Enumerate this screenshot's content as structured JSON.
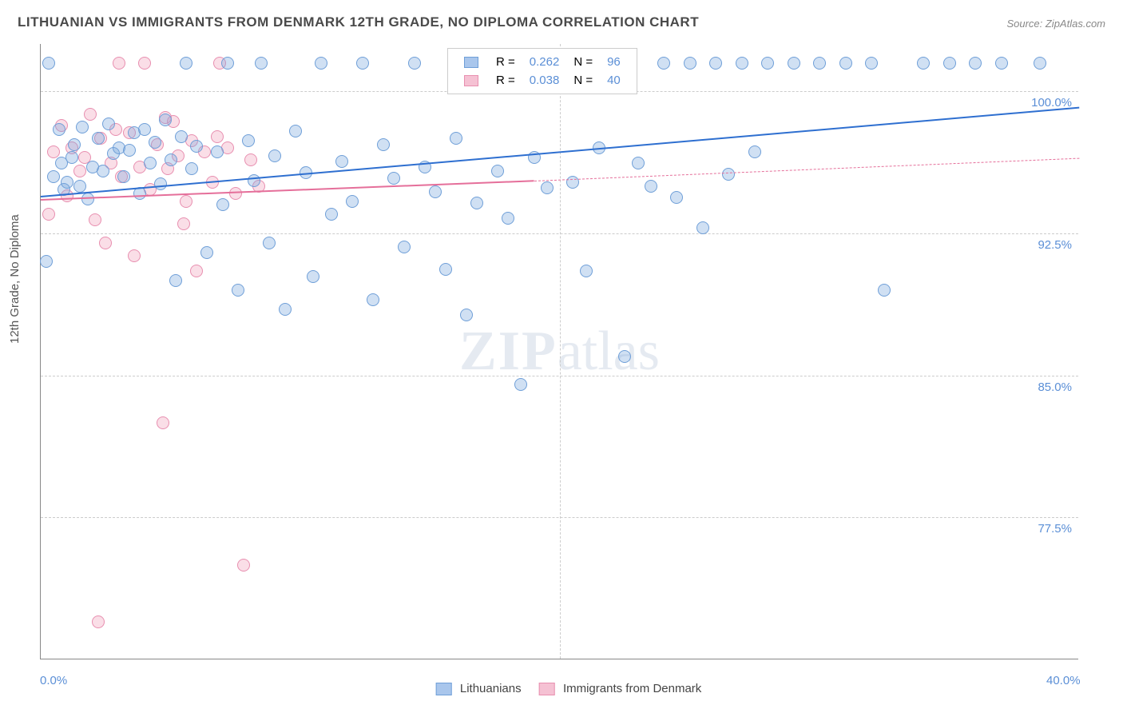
{
  "title": "LITHUANIAN VS IMMIGRANTS FROM DENMARK 12TH GRADE, NO DIPLOMA CORRELATION CHART",
  "source": "Source: ZipAtlas.com",
  "y_axis_label": "12th Grade, No Diploma",
  "watermark_bold": "ZIP",
  "watermark_rest": "atlas",
  "chart": {
    "type": "scatter",
    "background_color": "#ffffff",
    "grid_color": "#cccccc",
    "axis_line_color": "#888888",
    "xlim": [
      0,
      40
    ],
    "ylim": [
      70,
      102.5
    ],
    "x_ticks": [
      {
        "value": 0,
        "label": "0.0%"
      },
      {
        "value": 40,
        "label": "40.0%"
      }
    ],
    "x_gridlines": [
      20
    ],
    "y_ticks": [
      {
        "value": 77.5,
        "label": "77.5%"
      },
      {
        "value": 85.0,
        "label": "85.0%"
      },
      {
        "value": 92.5,
        "label": "92.5%"
      },
      {
        "value": 100.0,
        "label": "100.0%"
      }
    ],
    "y_tick_label_color": "#5b8fd6",
    "label_fontsize": 15,
    "title_fontsize": 17,
    "title_color": "#4a4a4a"
  },
  "series": [
    {
      "name": "Lithuanians",
      "marker_fill": "rgba(120,165,220,0.35)",
      "marker_stroke": "#6f9fd8",
      "marker_radius": 8,
      "swatch_fill": "#a9c6ec",
      "swatch_border": "#6f9fd8",
      "R": "0.262",
      "N": "96",
      "trend": {
        "x1": 0,
        "y1": 94.5,
        "x2": 40,
        "y2": 99.2,
        "color": "#2e6fd0",
        "width": 2.5,
        "dash": false
      },
      "points": [
        [
          0.2,
          91
        ],
        [
          0.3,
          101.5
        ],
        [
          0.5,
          95.5
        ],
        [
          0.7,
          98
        ],
        [
          0.8,
          96.2
        ],
        [
          0.9,
          94.8
        ],
        [
          1.0,
          95.2
        ],
        [
          1.2,
          96.5
        ],
        [
          1.3,
          97.2
        ],
        [
          1.5,
          95.0
        ],
        [
          1.6,
          98.1
        ],
        [
          1.8,
          94.3
        ],
        [
          2.0,
          96.0
        ],
        [
          2.2,
          97.5
        ],
        [
          2.4,
          95.8
        ],
        [
          2.6,
          98.3
        ],
        [
          2.8,
          96.7
        ],
        [
          3.0,
          97.0
        ],
        [
          3.2,
          95.5
        ],
        [
          3.4,
          96.9
        ],
        [
          3.6,
          97.8
        ],
        [
          3.8,
          94.6
        ],
        [
          4.0,
          98.0
        ],
        [
          4.2,
          96.2
        ],
        [
          4.4,
          97.3
        ],
        [
          4.6,
          95.1
        ],
        [
          4.8,
          98.5
        ],
        [
          5.0,
          96.4
        ],
        [
          5.2,
          90.0
        ],
        [
          5.4,
          97.6
        ],
        [
          5.6,
          101.5
        ],
        [
          5.8,
          95.9
        ],
        [
          6.0,
          97.1
        ],
        [
          6.4,
          91.5
        ],
        [
          6.8,
          96.8
        ],
        [
          7.0,
          94.0
        ],
        [
          7.2,
          101.5
        ],
        [
          7.6,
          89.5
        ],
        [
          8.0,
          97.4
        ],
        [
          8.2,
          95.3
        ],
        [
          8.5,
          101.5
        ],
        [
          8.8,
          92.0
        ],
        [
          9.0,
          96.6
        ],
        [
          9.4,
          88.5
        ],
        [
          9.8,
          97.9
        ],
        [
          10.2,
          95.7
        ],
        [
          10.5,
          90.2
        ],
        [
          10.8,
          101.5
        ],
        [
          11.2,
          93.5
        ],
        [
          11.6,
          96.3
        ],
        [
          12.0,
          94.2
        ],
        [
          12.4,
          101.5
        ],
        [
          12.8,
          89.0
        ],
        [
          13.2,
          97.2
        ],
        [
          13.6,
          95.4
        ],
        [
          14.0,
          91.8
        ],
        [
          14.4,
          101.5
        ],
        [
          14.8,
          96.0
        ],
        [
          15.2,
          94.7
        ],
        [
          15.6,
          90.6
        ],
        [
          16.0,
          97.5
        ],
        [
          16.4,
          88.2
        ],
        [
          16.8,
          94.1
        ],
        [
          17.2,
          101.5
        ],
        [
          17.6,
          95.8
        ],
        [
          18.0,
          93.3
        ],
        [
          18.5,
          84.5
        ],
        [
          19.0,
          96.5
        ],
        [
          19.5,
          94.9
        ],
        [
          20.0,
          101.5
        ],
        [
          20.5,
          95.2
        ],
        [
          21.0,
          90.5
        ],
        [
          21.5,
          97.0
        ],
        [
          22.0,
          101.5
        ],
        [
          22.5,
          86.0
        ],
        [
          23.0,
          96.2
        ],
        [
          23.5,
          95.0
        ],
        [
          24.0,
          101.5
        ],
        [
          24.5,
          94.4
        ],
        [
          25.0,
          101.5
        ],
        [
          25.5,
          92.8
        ],
        [
          26.0,
          101.5
        ],
        [
          26.5,
          95.6
        ],
        [
          27.0,
          101.5
        ],
        [
          27.5,
          96.8
        ],
        [
          28.0,
          101.5
        ],
        [
          29.0,
          101.5
        ],
        [
          30.0,
          101.5
        ],
        [
          31.0,
          101.5
        ],
        [
          32.0,
          101.5
        ],
        [
          32.5,
          89.5
        ],
        [
          34.0,
          101.5
        ],
        [
          35.0,
          101.5
        ],
        [
          36.0,
          101.5
        ],
        [
          37.0,
          101.5
        ],
        [
          38.5,
          101.5
        ]
      ]
    },
    {
      "name": "Immigrants from Denmark",
      "marker_fill": "rgba(240,160,185,0.35)",
      "marker_stroke": "#e88fb0",
      "marker_radius": 8,
      "swatch_fill": "#f5c1d3",
      "swatch_border": "#e88fb0",
      "R": "0.038",
      "N": "40",
      "trend": {
        "x1": 0,
        "y1": 94.3,
        "x2": 19,
        "y2": 95.3,
        "color": "#e56f9a",
        "width": 2,
        "dash": false
      },
      "trend_ext": {
        "x1": 19,
        "y1": 95.3,
        "x2": 40,
        "y2": 96.5,
        "color": "#e56f9a",
        "width": 1.5,
        "dash": true
      },
      "points": [
        [
          0.3,
          93.5
        ],
        [
          0.5,
          96.8
        ],
        [
          0.8,
          98.2
        ],
        [
          1.0,
          94.5
        ],
        [
          1.2,
          97.0
        ],
        [
          1.5,
          95.8
        ],
        [
          1.7,
          96.5
        ],
        [
          1.9,
          98.8
        ],
        [
          2.1,
          93.2
        ],
        [
          2.3,
          97.5
        ],
        [
          2.5,
          92.0
        ],
        [
          2.7,
          96.2
        ],
        [
          2.9,
          98.0
        ],
        [
          3.1,
          95.5
        ],
        [
          3.4,
          97.8
        ],
        [
          3.6,
          91.3
        ],
        [
          3.8,
          96.0
        ],
        [
          4.0,
          101.5
        ],
        [
          4.2,
          94.8
        ],
        [
          4.5,
          97.2
        ],
        [
          4.7,
          82.5
        ],
        [
          4.9,
          95.9
        ],
        [
          5.1,
          98.4
        ],
        [
          5.3,
          96.6
        ],
        [
          5.6,
          94.2
        ],
        [
          5.8,
          97.4
        ],
        [
          6.0,
          90.5
        ],
        [
          6.3,
          96.8
        ],
        [
          6.6,
          95.2
        ],
        [
          6.9,
          101.5
        ],
        [
          7.2,
          97.0
        ],
        [
          7.5,
          94.6
        ],
        [
          7.8,
          75.0
        ],
        [
          8.1,
          96.4
        ],
        [
          8.4,
          95.0
        ],
        [
          2.2,
          72.0
        ],
        [
          3.0,
          101.5
        ],
        [
          4.8,
          98.6
        ],
        [
          5.5,
          93.0
        ],
        [
          6.8,
          97.6
        ]
      ]
    }
  ],
  "legend_top": {
    "R_label": "R =",
    "N_label": "N ="
  },
  "legend_bottom": {
    "series1": "Lithuanians",
    "series2": "Immigrants from Denmark"
  }
}
